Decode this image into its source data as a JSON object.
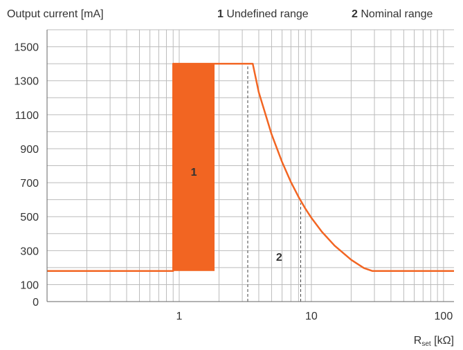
{
  "chart_data": {
    "type": "line",
    "ylabel": "Output current [mA]",
    "xlabel_main": "R",
    "xlabel_sub": "set",
    "xlabel_unit": " [kΩ]",
    "x_scale": "log",
    "xlim": [
      0.1,
      120
    ],
    "ylim": [
      0,
      1600
    ],
    "x_ticks": [
      {
        "value": 1,
        "label": "1"
      },
      {
        "value": 10,
        "label": "10"
      },
      {
        "value": 100,
        "label": "100"
      }
    ],
    "y_ticks": [
      {
        "value": 0,
        "label": "0"
      },
      {
        "value": 100,
        "label": "100"
      },
      {
        "value": 300,
        "label": "300"
      },
      {
        "value": 500,
        "label": "500"
      },
      {
        "value": 700,
        "label": "700"
      },
      {
        "value": 900,
        "label": "900"
      },
      {
        "value": 1100,
        "label": "1100"
      },
      {
        "value": 1300,
        "label": "1300"
      },
      {
        "value": 1500,
        "label": "1500"
      }
    ],
    "grid": true,
    "legend": [
      {
        "number": "1",
        "text": " Undefined range"
      },
      {
        "number": "2",
        "text": " Nominal range"
      }
    ],
    "legend_position": "top-right",
    "colors": {
      "curve": "#F26522",
      "region": "#F26522",
      "grid": "#BBBBBB",
      "axis": "#666666",
      "dashed": "#444444"
    },
    "curve": {
      "x": [
        0.1,
        0.9,
        0.9,
        3.6,
        4.0,
        5.0,
        6.0,
        7.0,
        8.0,
        9.0,
        10.0,
        12.0,
        15.0,
        20.0,
        25.0,
        29.0,
        120.0
      ],
      "y": [
        180,
        180,
        1400,
        1400,
        1232,
        985,
        821,
        704,
        616,
        547,
        493,
        411,
        329,
        246,
        197,
        180,
        180
      ]
    },
    "undefined_region": {
      "x": [
        0.9,
        1.85
      ],
      "y": [
        180,
        1400
      ],
      "label": "1"
    },
    "nominal_label": {
      "x": 5.7,
      "y": 240,
      "text": "2"
    },
    "dashed_lines": [
      {
        "x": 3.3,
        "y": [
          0,
          1400
        ]
      },
      {
        "x": 8.3,
        "y": [
          0,
          580
        ]
      }
    ]
  }
}
